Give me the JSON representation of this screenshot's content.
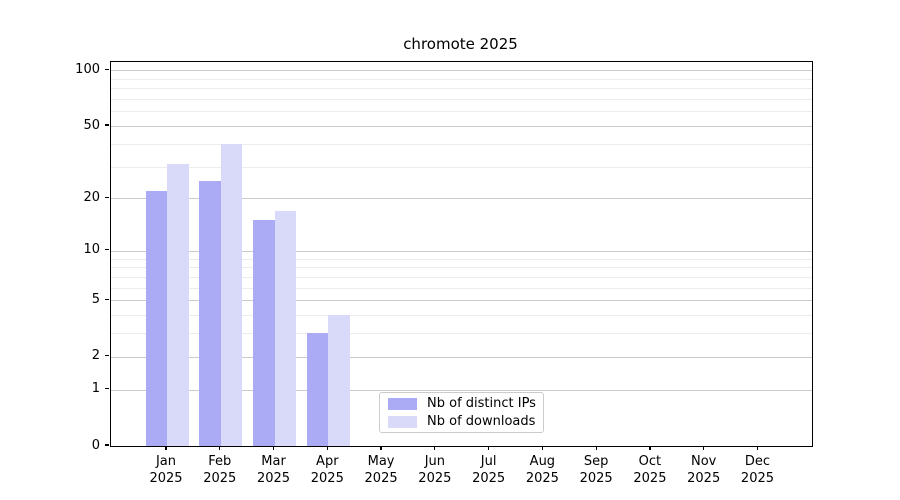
{
  "title": "chromote 2025",
  "chart_data": {
    "type": "bar",
    "title": "chromote 2025",
    "categories": [
      "Jan 2025",
      "Feb 2025",
      "Mar 2025",
      "Apr 2025",
      "May 2025",
      "Jun 2025",
      "Jul 2025",
      "Aug 2025",
      "Sep 2025",
      "Oct 2025",
      "Nov 2025",
      "Dec 2025"
    ],
    "x_tick_months": [
      "Jan",
      "Feb",
      "Mar",
      "Apr",
      "May",
      "Jun",
      "Jul",
      "Aug",
      "Sep",
      "Oct",
      "Nov",
      "Dec"
    ],
    "x_tick_year": "2025",
    "series": [
      {
        "name": "Nb of distinct IPs",
        "color": "#aaaaf5",
        "values": [
          22,
          25,
          15,
          3,
          null,
          null,
          null,
          null,
          null,
          null,
          null,
          null
        ]
      },
      {
        "name": "Nb of downloads",
        "color": "#d9d9fa",
        "values": [
          31,
          40,
          17,
          4,
          null,
          null,
          null,
          null,
          null,
          null,
          null,
          null
        ]
      }
    ],
    "yscale": "log10(1+x)",
    "y_major_ticks": [
      0,
      1,
      2,
      5,
      10,
      20,
      50,
      100
    ],
    "y_minor_ticks": [
      3,
      4,
      6,
      7,
      8,
      9,
      30,
      40,
      60,
      70,
      80,
      90
    ],
    "ylim": [
      0,
      111
    ],
    "grid": "horizontal",
    "legend_position": "lower center",
    "colors": {
      "major_grid": "#cbcbcb",
      "minor_grid": "#ececec",
      "spine": "#000000",
      "background": "#ffffff"
    }
  }
}
